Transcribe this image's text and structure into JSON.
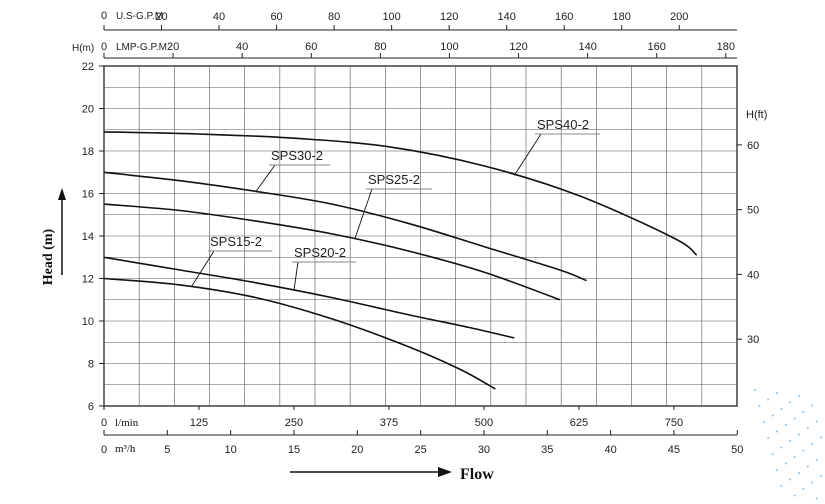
{
  "chart_data": {
    "type": "line",
    "ylabel": "Head (m)",
    "ylabel_right": "H(ft)",
    "left_axis_title": "H(m)",
    "xlabel": "Flow",
    "ylim": [
      6,
      22
    ],
    "xlim_lmin": [
      0,
      833
    ],
    "y_ticks": [
      "6",
      "8",
      "10",
      "12",
      "14",
      "16",
      "18",
      "20",
      "22"
    ],
    "ft_ticks": [
      "30",
      "40",
      "50",
      "60"
    ],
    "top_axes": [
      {
        "name": "U.S-G.P.M",
        "ticks": [
          "0",
          "20",
          "40",
          "60",
          "80",
          "100",
          "120",
          "140",
          "160",
          "180",
          "200"
        ]
      },
      {
        "name": "LMP-G.P.M",
        "ticks": [
          "0",
          "20",
          "40",
          "60",
          "80",
          "100",
          "120",
          "140",
          "160",
          "180"
        ]
      }
    ],
    "bottom_axes": [
      {
        "name": "l/min",
        "ticks": [
          "0",
          "125",
          "250",
          "375",
          "500",
          "625",
          "750"
        ]
      },
      {
        "name": "m³/h",
        "ticks": [
          "0",
          "5",
          "10",
          "15",
          "20",
          "25",
          "30",
          "35",
          "40",
          "45",
          "50"
        ]
      }
    ],
    "series": [
      {
        "name": "SPS40-2",
        "x": [
          0,
          125,
          250,
          375,
          500,
          625,
          750,
          780
        ],
        "y": [
          18.9,
          18.8,
          18.6,
          18.2,
          17.3,
          15.9,
          13.9,
          13.1
        ]
      },
      {
        "name": "SPS30-2",
        "x": [
          0,
          100,
          200,
          300,
          400,
          500,
          600,
          635
        ],
        "y": [
          17.0,
          16.6,
          16.1,
          15.5,
          14.6,
          13.5,
          12.4,
          11.9
        ]
      },
      {
        "name": "SPS25-2",
        "x": [
          0,
          100,
          200,
          300,
          400,
          500,
          600
        ],
        "y": [
          15.5,
          15.2,
          14.7,
          14.1,
          13.3,
          12.3,
          11.0
        ]
      },
      {
        "name": "SPS20-2",
        "x": [
          0,
          100,
          200,
          300,
          400,
          480,
          540
        ],
        "y": [
          13.0,
          12.4,
          11.8,
          11.1,
          10.3,
          9.7,
          9.2
        ]
      },
      {
        "name": "SPS15-2",
        "x": [
          0,
          100,
          200,
          300,
          400,
          470,
          515
        ],
        "y": [
          12.0,
          11.7,
          11.1,
          10.1,
          8.8,
          7.7,
          6.8
        ]
      }
    ]
  }
}
